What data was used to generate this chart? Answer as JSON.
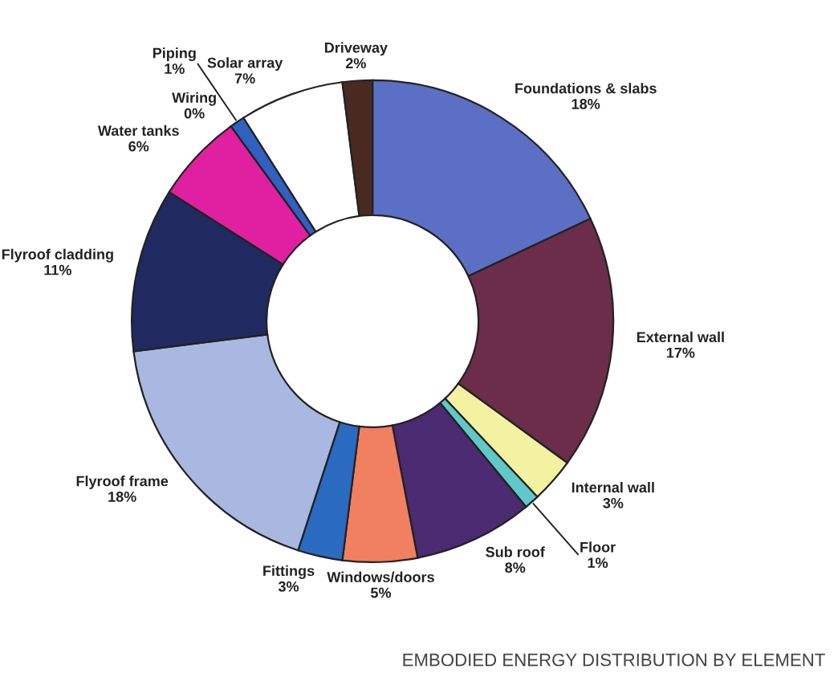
{
  "chart_data": {
    "type": "donut",
    "categories": [
      "Foundations & slabs",
      "External wall",
      "Internal wall",
      "Floor",
      "Sub roof",
      "Windows/doors",
      "Fittings",
      "Flyroof frame",
      "Flyroof cladding",
      "Water tanks",
      "Wiring",
      "Piping",
      "Solar array",
      "Driveway"
    ],
    "values": [
      18,
      17,
      3,
      1,
      8,
      5,
      3,
      18,
      11,
      6,
      0,
      1,
      7,
      2
    ],
    "value_labels": [
      "18%",
      "17%",
      "3%",
      "1%",
      "8%",
      "5%",
      "3%",
      "18%",
      "11%",
      "6%",
      "0%",
      "1%",
      "7%",
      "2%"
    ],
    "colors": [
      "#5b6fc4",
      "#6b2d4a",
      "#f2f2a0",
      "#60c8c8",
      "#4a2a70",
      "#f08060",
      "#2a6ac0",
      "#a8b8e0",
      "#202a60",
      "#e020a0",
      "#ffffff",
      "#3060c0",
      "#ffffff",
      "#4a2a20"
    ],
    "annotations": [
      "EMBODIED ENERGY DISTRIBUTION BY ELEMENT"
    ],
    "legend": false
  }
}
